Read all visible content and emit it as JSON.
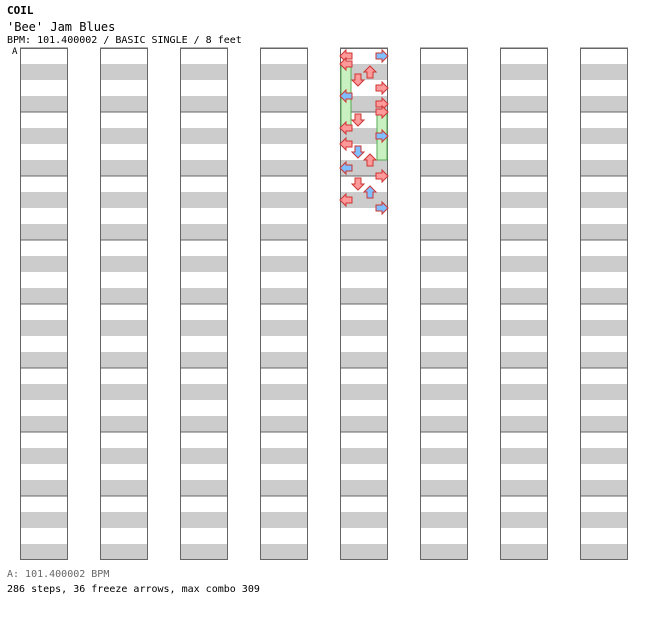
{
  "header": {
    "artist": "COIL",
    "title": "'Bee' Jam Blues",
    "info": "BPM: 101.400002 / BASIC SINGLE / 8 feet",
    "marker": "A"
  },
  "footer": {
    "bpm_line": "A: 101.400002 BPM",
    "stats_line": "286 steps, 36 freeze arrows, max combo 309"
  },
  "colors": {
    "quarter": "#ff9a9a",
    "eighth": "#7fbfff",
    "sixteenth": "#f4a8f4",
    "freeze": "#c8f0c0",
    "stripe": "#cccccc"
  },
  "chart_data": {
    "type": "step-chart",
    "columns": 8,
    "measures_per_column": 8,
    "lanes": [
      "left",
      "down",
      "up",
      "right"
    ],
    "column_notes": [
      [],
      [],
      [],
      [],
      [
        {
          "beat": 0,
          "lane": "left",
          "kind": "quarter"
        },
        {
          "beat": 0,
          "lane": "right",
          "kind": "eighth"
        },
        {
          "beat": 1,
          "lane": "up",
          "kind": "quarter"
        },
        {
          "beat": 0.5,
          "lane": "left",
          "kind": "freeze",
          "length": 2
        },
        {
          "beat": 1.5,
          "lane": "down",
          "kind": "quarter"
        },
        {
          "beat": 2,
          "lane": "right",
          "kind": "quarter"
        },
        {
          "beat": 2.5,
          "lane": "left",
          "kind": "eighth"
        },
        {
          "beat": 3,
          "lane": "right",
          "kind": "quarter"
        },
        {
          "beat": 3.5,
          "lane": "right",
          "kind": "freeze",
          "length": 1.5
        },
        {
          "beat": 4,
          "lane": "down",
          "kind": "quarter"
        },
        {
          "beat": 4.5,
          "lane": "left",
          "kind": "quarter"
        },
        {
          "beat": 5,
          "lane": "right",
          "kind": "eighth"
        },
        {
          "beat": 5.5,
          "lane": "left",
          "kind": "quarter"
        },
        {
          "beat": 6,
          "lane": "down",
          "kind": "eighth"
        },
        {
          "beat": 6.5,
          "lane": "up",
          "kind": "quarter"
        },
        {
          "beat": 7,
          "lane": "left",
          "kind": "eighth"
        },
        {
          "beat": 7.5,
          "lane": "right",
          "kind": "quarter"
        },
        {
          "beat": 8,
          "lane": "down",
          "kind": "quarter"
        },
        {
          "beat": 8.5,
          "lane": "up",
          "kind": "eighth"
        },
        {
          "beat": 9,
          "lane": "left",
          "kind": "quarter"
        },
        {
          "beat": 9.5,
          "lane": "right",
          "kind": "eighth"
        }
      ],
      [],
      [],
      []
    ]
  }
}
